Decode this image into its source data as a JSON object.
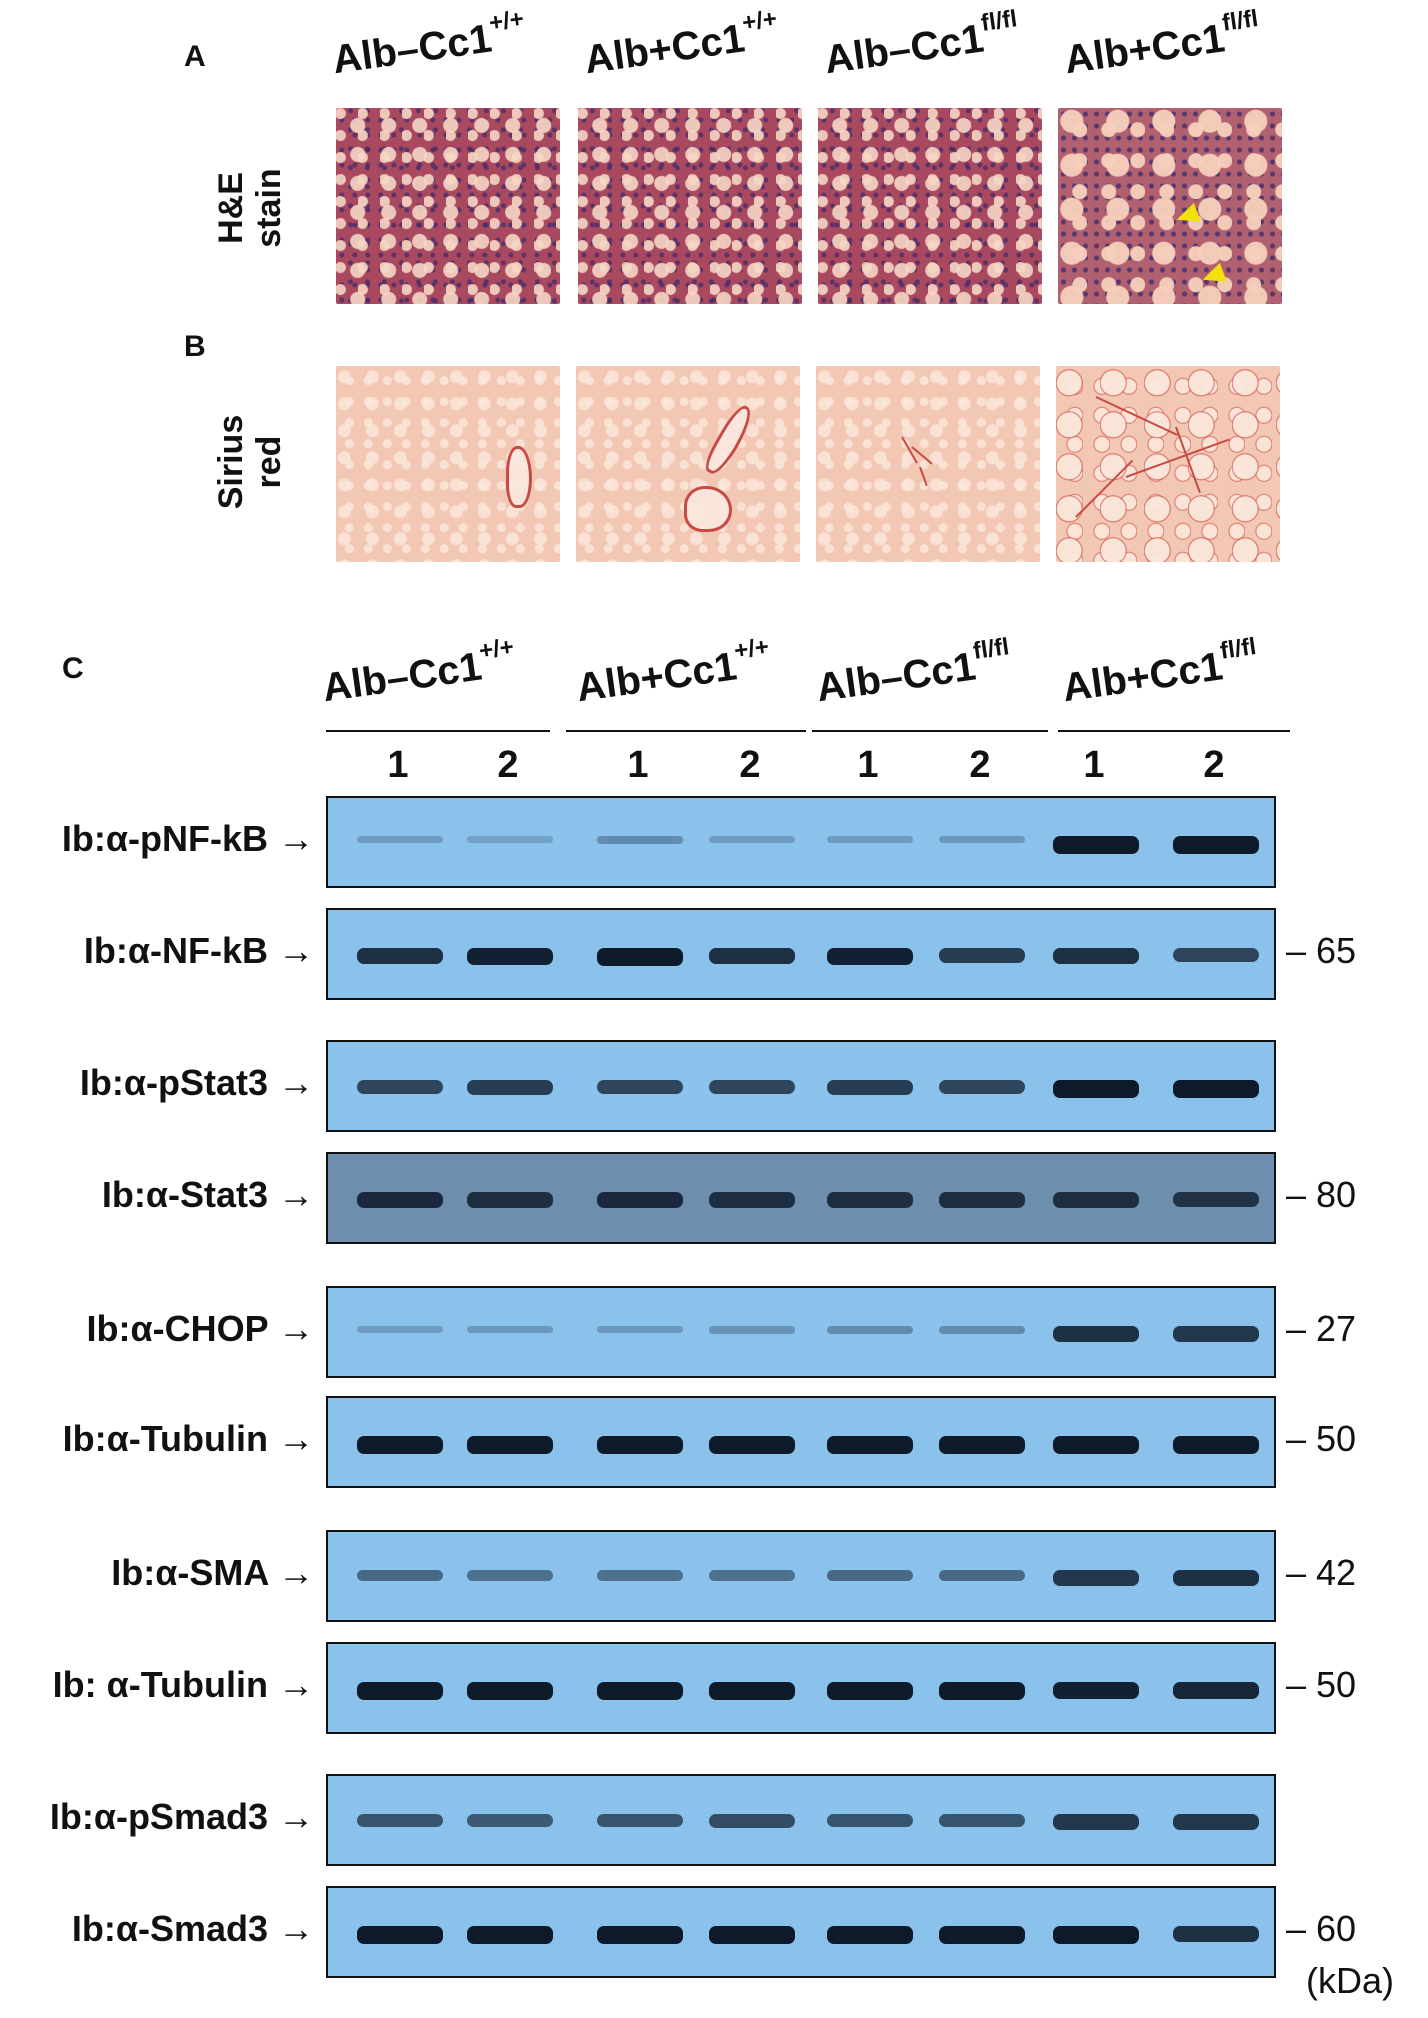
{
  "panels": {
    "a": "A",
    "b": "B",
    "c": "C"
  },
  "genotypes": [
    {
      "base": "Alb–Cc1",
      "sup": "+/+"
    },
    {
      "base": "Alb+Cc1",
      "sup": "+/+"
    },
    {
      "base": "Alb–Cc1",
      "sup": "fl/fl"
    },
    {
      "base": "Alb+Cc1",
      "sup": "fl/fl"
    }
  ],
  "stain_labels": {
    "he": [
      "H&E",
      "stain"
    ],
    "sirius": [
      "Sirius",
      "red"
    ]
  },
  "lanes": [
    "1",
    "2",
    "1",
    "2",
    "1",
    "2",
    "1",
    "2"
  ],
  "blots": [
    {
      "label": "Ib:α-pNF-kB →",
      "marker": "",
      "intensities": [
        0.08,
        0.05,
        0.2,
        0.08,
        0.1,
        0.12,
        1.0,
        1.0
      ]
    },
    {
      "label": "Ib:α-NF-kB →",
      "marker": "– 65",
      "intensities": [
        0.85,
        0.95,
        1.0,
        0.85,
        0.95,
        0.75,
        0.85,
        0.7
      ]
    },
    {
      "label": "Ib:α-pStat3 →",
      "marker": "",
      "intensities": [
        0.7,
        0.75,
        0.7,
        0.7,
        0.75,
        0.7,
        1.0,
        1.0
      ]
    },
    {
      "label": "Ib:α-Stat3 →",
      "marker": "– 80",
      "intensities": [
        0.85,
        0.8,
        0.85,
        0.8,
        0.8,
        0.8,
        0.8,
        0.75
      ]
    },
    {
      "label": "Ib:α-CHOP →",
      "marker": "– 27",
      "intensities": [
        0.08,
        0.12,
        0.12,
        0.15,
        0.2,
        0.2,
        0.85,
        0.8
      ]
    },
    {
      "label": "Ib:α-Tubulin →",
      "marker": "– 50",
      "intensities": [
        1.0,
        1.0,
        1.0,
        1.0,
        1.0,
        1.0,
        1.0,
        1.0
      ]
    },
    {
      "label": "Ib:α-SMA →",
      "marker": "– 42",
      "intensities": [
        0.45,
        0.4,
        0.4,
        0.4,
        0.45,
        0.45,
        0.8,
        0.85
      ]
    },
    {
      "label": "Ib: α-Tubulin →",
      "marker": "– 50",
      "intensities": [
        1.0,
        1.0,
        1.0,
        1.0,
        1.0,
        1.0,
        0.95,
        0.9
      ]
    },
    {
      "label": "Ib:α-pSmad3 →",
      "marker": "",
      "intensities": [
        0.6,
        0.55,
        0.6,
        0.65,
        0.6,
        0.6,
        0.8,
        0.8
      ]
    },
    {
      "label": "Ib:α-Smad3 →",
      "marker": "– 60",
      "intensities": [
        1.0,
        1.0,
        1.0,
        1.0,
        1.0,
        1.0,
        1.0,
        0.85
      ]
    }
  ],
  "unit_label": "(kDa)",
  "colors": {
    "blot_bg": "#8ac2ec",
    "blot_dark_bg": "#6e8ead",
    "band": "#0d1a2a",
    "arrow": "#f2e20b"
  }
}
